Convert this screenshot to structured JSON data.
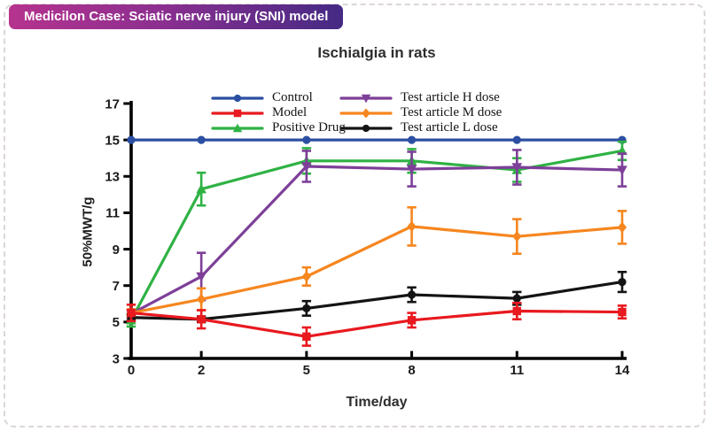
{
  "page": {
    "badge": "Medicilon Case: Sciatic nerve injury (SNI) model"
  },
  "chart_data": {
    "type": "line",
    "title": "Ischialgia in rats",
    "xlabel": "Time/day",
    "ylabel": "50%MWT/g",
    "x": [
      0,
      2,
      5,
      8,
      11,
      14
    ],
    "xlim": [
      0,
      14
    ],
    "ylim": [
      3,
      17
    ],
    "y_ticks": [
      3,
      5,
      7,
      9,
      11,
      13,
      15,
      17
    ],
    "grid": false,
    "error_bars": "SEM with caps",
    "legend_position": "inside top, two columns",
    "axis_color": "#000000",
    "series": [
      {
        "name": "Control",
        "color": "#2b4fa2",
        "marker": "circle",
        "values": [
          15,
          15,
          15,
          15,
          15,
          15
        ],
        "errors": [
          0,
          0,
          0,
          0,
          0,
          0
        ]
      },
      {
        "name": "Model",
        "color": "#e8191f",
        "marker": "square",
        "values": [
          5.5,
          5.15,
          4.2,
          5.1,
          5.6,
          5.55
        ],
        "errors": [
          0.45,
          0.5,
          0.5,
          0.4,
          0.45,
          0.35
        ]
      },
      {
        "name": "Positive Drug",
        "color": "#2fb244",
        "marker": "triangle-up",
        "values": [
          5.1,
          12.3,
          13.85,
          13.85,
          13.35,
          14.4
        ],
        "errors": [
          0.35,
          0.9,
          0.7,
          0.65,
          0.65,
          0.5
        ]
      },
      {
        "name": "Test article H dose",
        "color": "#7d3f98",
        "marker": "triangle-down",
        "values": [
          5.45,
          7.5,
          13.55,
          13.4,
          13.5,
          13.35
        ],
        "errors": [
          0.2,
          1.3,
          0.85,
          0.95,
          0.95,
          0.9
        ]
      },
      {
        "name": "Test article M dose",
        "color": "#f6861f",
        "marker": "diamond",
        "values": [
          5.5,
          6.25,
          7.5,
          10.25,
          9.7,
          10.2
        ],
        "errors": [
          0.2,
          0.6,
          0.5,
          1.05,
          0.95,
          0.9
        ]
      },
      {
        "name": "Test article L dose",
        "color": "#141414",
        "marker": "circle",
        "values": [
          5.25,
          5.15,
          5.75,
          6.5,
          6.3,
          7.2
        ],
        "errors": [
          0.15,
          0.15,
          0.4,
          0.4,
          0.35,
          0.55
        ]
      }
    ]
  }
}
